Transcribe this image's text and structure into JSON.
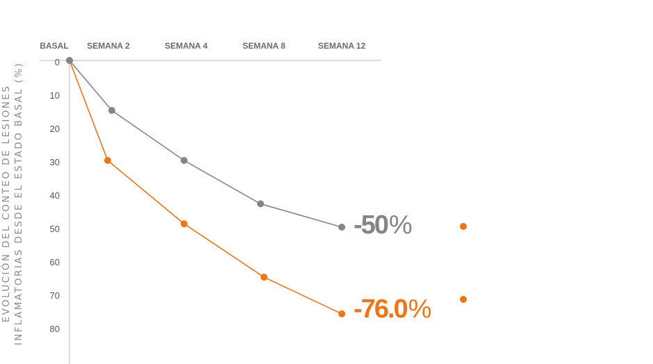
{
  "chart_data": {
    "type": "line",
    "ylabel_lines": [
      "EVOLUCIÓN DEL CONTEO DE LESIONES",
      "INFLAMATORIAS DESDE EL ESTADO BASAL (%)"
    ],
    "categories": [
      "BASAL",
      "SEMANA 2",
      "SEMANA 4",
      "SEMANA 8",
      "SEMANA 12"
    ],
    "yticks": [
      "0",
      "10",
      "20",
      "30",
      "40",
      "50",
      "60",
      "70",
      "80"
    ],
    "ylim": [
      0,
      90
    ],
    "y_inverted": true,
    "grid": false,
    "colors": {
      "gray": "#858585",
      "orange": "#f07517",
      "axis": "#bdbdbd"
    },
    "series": [
      {
        "color_key": "gray",
        "values": [
          0,
          15,
          30,
          43,
          50
        ],
        "end_label_number": "-50",
        "end_label_unit": "%"
      },
      {
        "color_key": "orange",
        "values": [
          0,
          30,
          49,
          65,
          76
        ],
        "end_label_number": "-76.0",
        "end_label_unit": "%"
      }
    ]
  }
}
